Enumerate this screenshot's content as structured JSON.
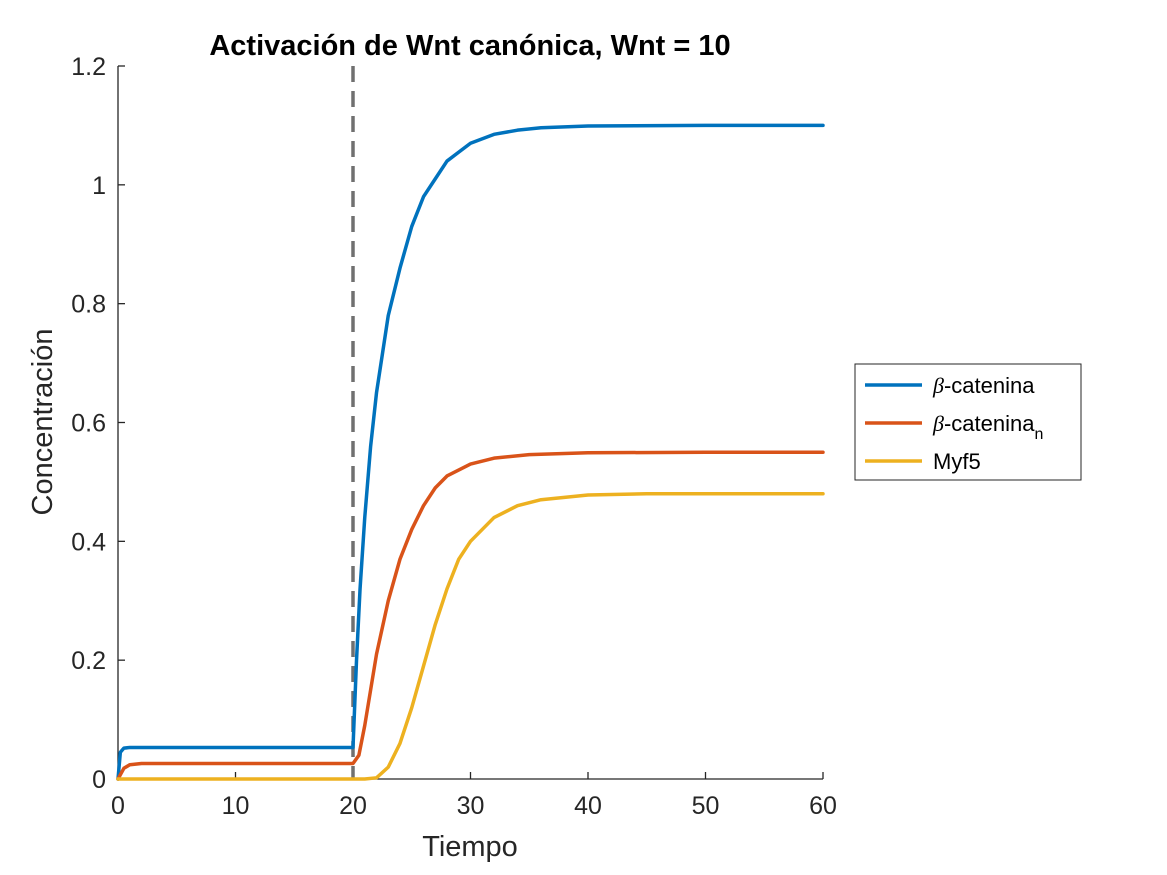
{
  "chart_data": {
    "type": "line",
    "title": "Activación de Wnt canónica, Wnt = 10",
    "xlabel": "Tiempo",
    "ylabel": "Concentración",
    "xlim": [
      0,
      60
    ],
    "ylim": [
      0,
      1.2
    ],
    "x_ticks": [
      0,
      10,
      20,
      30,
      40,
      50,
      60
    ],
    "y_ticks": [
      0,
      0.2,
      0.4,
      0.6,
      0.8,
      1,
      1.2
    ],
    "x_tick_labels": [
      "0",
      "10",
      "20",
      "30",
      "40",
      "50",
      "60"
    ],
    "y_tick_labels": [
      "0",
      "0.2",
      "0.4",
      "0.6",
      "0.8",
      "1",
      "1.2"
    ],
    "grid": false,
    "legend_position": "outside-right",
    "vertical_marker": {
      "x": 20,
      "style": "dashed",
      "color": "#707070"
    },
    "series": [
      {
        "name": "β-catenina",
        "legend_prefix": "β",
        "legend_text": "-catenina",
        "legend_sub": "",
        "color": "#0072BD",
        "points": [
          [
            0,
            0
          ],
          [
            0.2,
            0.045
          ],
          [
            0.5,
            0.052
          ],
          [
            1,
            0.053
          ],
          [
            20,
            0.053
          ],
          [
            20.3,
            0.2
          ],
          [
            20.6,
            0.32
          ],
          [
            21,
            0.44
          ],
          [
            21.5,
            0.56
          ],
          [
            22,
            0.65
          ],
          [
            23,
            0.78
          ],
          [
            24,
            0.86
          ],
          [
            25,
            0.93
          ],
          [
            26,
            0.98
          ],
          [
            27,
            1.01
          ],
          [
            28,
            1.04
          ],
          [
            29,
            1.055
          ],
          [
            30,
            1.07
          ],
          [
            32,
            1.085
          ],
          [
            34,
            1.092
          ],
          [
            36,
            1.096
          ],
          [
            40,
            1.099
          ],
          [
            50,
            1.1
          ],
          [
            60,
            1.1
          ]
        ]
      },
      {
        "name": "β-cateninan",
        "legend_prefix": "β",
        "legend_text": "-catenina",
        "legend_sub": "n",
        "color": "#D95319",
        "points": [
          [
            0,
            0
          ],
          [
            0.5,
            0.018
          ],
          [
            1,
            0.024
          ],
          [
            2,
            0.026
          ],
          [
            20,
            0.026
          ],
          [
            20.5,
            0.04
          ],
          [
            21,
            0.09
          ],
          [
            21.5,
            0.15
          ],
          [
            22,
            0.21
          ],
          [
            23,
            0.3
          ],
          [
            24,
            0.37
          ],
          [
            25,
            0.42
          ],
          [
            26,
            0.46
          ],
          [
            27,
            0.49
          ],
          [
            28,
            0.51
          ],
          [
            30,
            0.53
          ],
          [
            32,
            0.54
          ],
          [
            35,
            0.546
          ],
          [
            40,
            0.549
          ],
          [
            50,
            0.55
          ],
          [
            60,
            0.55
          ]
        ]
      },
      {
        "name": "Myf5",
        "legend_prefix": "",
        "legend_text": "Myf5",
        "legend_sub": "",
        "color": "#EDB120",
        "points": [
          [
            0,
            0
          ],
          [
            21,
            0
          ],
          [
            22,
            0.002
          ],
          [
            23,
            0.02
          ],
          [
            24,
            0.06
          ],
          [
            25,
            0.12
          ],
          [
            26,
            0.19
          ],
          [
            27,
            0.26
          ],
          [
            28,
            0.32
          ],
          [
            29,
            0.37
          ],
          [
            30,
            0.4
          ],
          [
            32,
            0.44
          ],
          [
            34,
            0.46
          ],
          [
            36,
            0.47
          ],
          [
            40,
            0.478
          ],
          [
            45,
            0.48
          ],
          [
            60,
            0.48
          ]
        ]
      }
    ]
  }
}
